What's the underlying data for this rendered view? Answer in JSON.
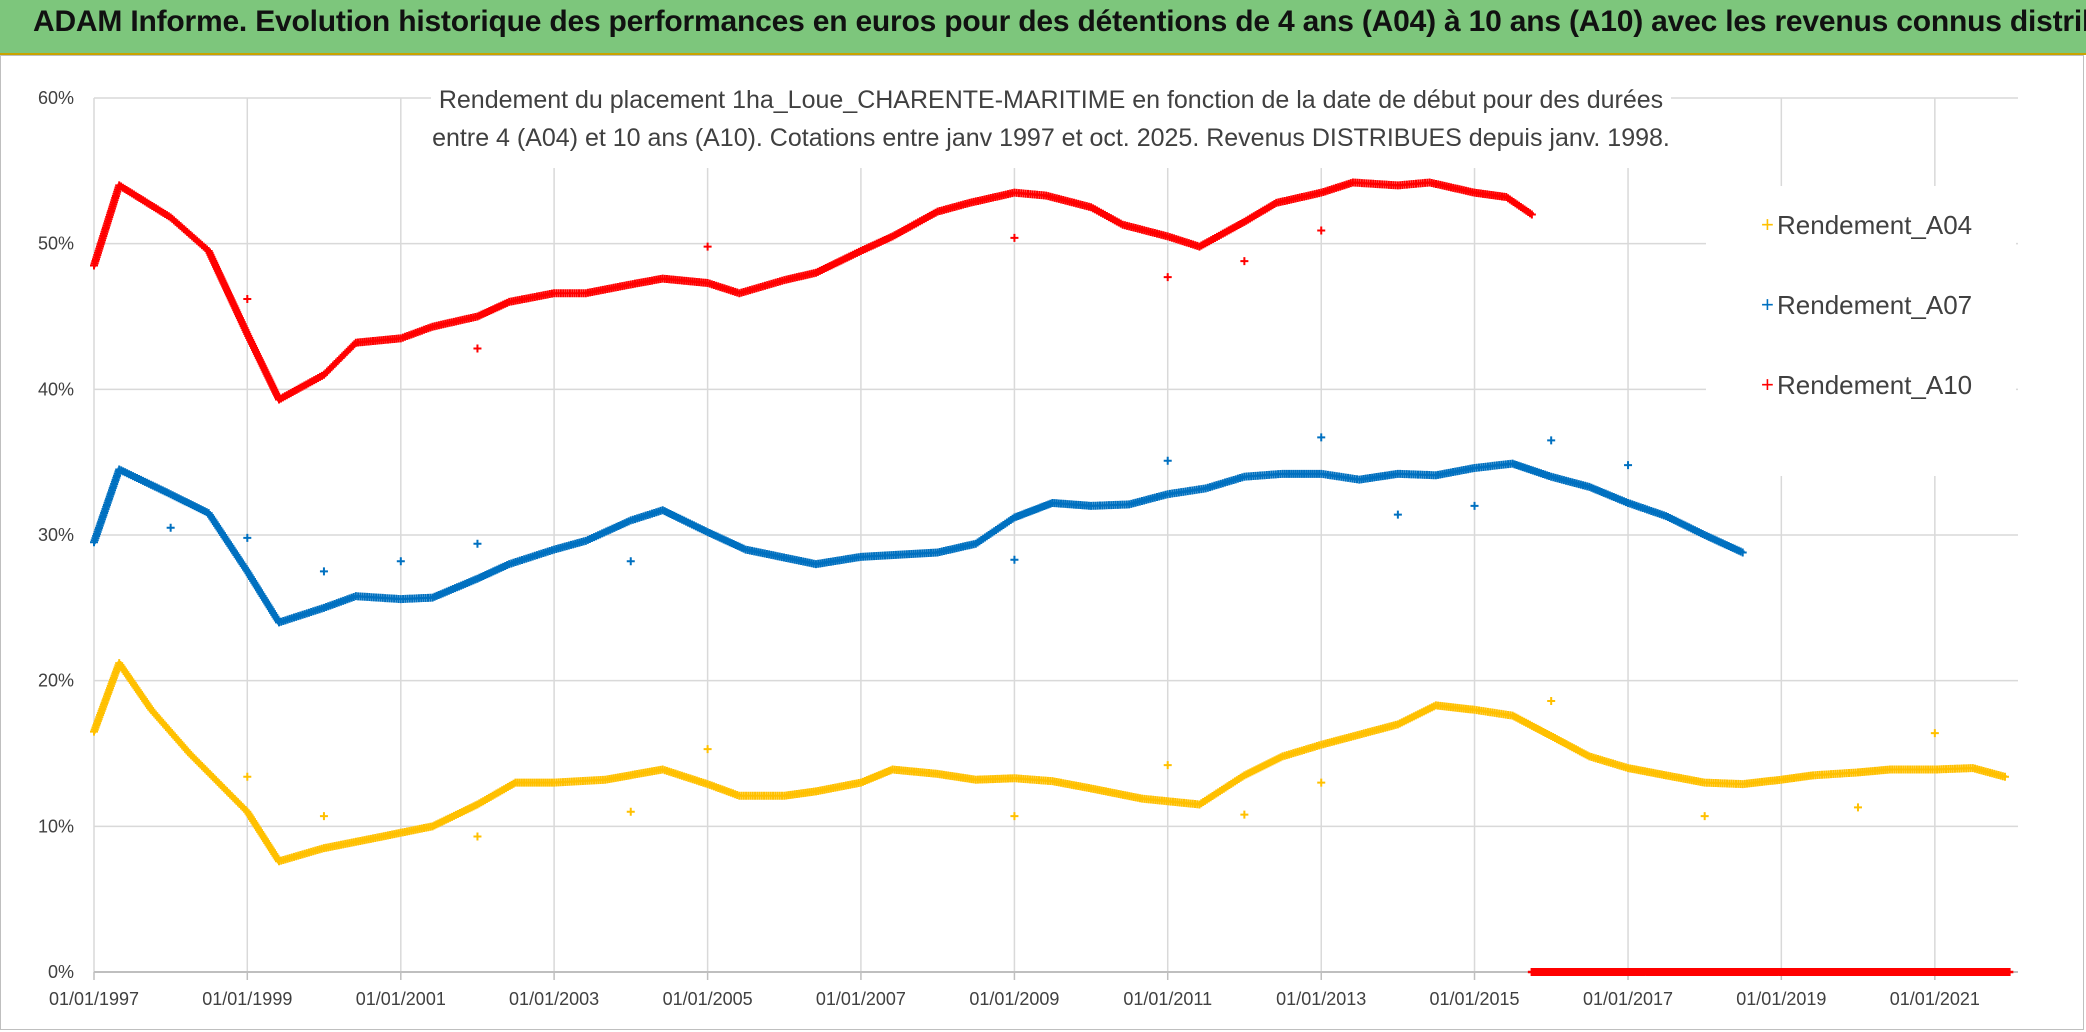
{
  "banner": {
    "title": "ADAM Informe. Evolution historique des performances en euros pour des détentions de 4 ans (A04) à 10 ans (A10) avec les revenus connus distribués"
  },
  "chart_data": {
    "type": "scatter",
    "title_lines": [
      "Rendement du placement 1ha_Loue_CHARENTE-MARITIME en fonction de la date de début pour des durées",
      "entre 4 (A04) et 10 ans (A10). Cotations entre janv 1997 et oct. 2025. Revenus DISTRIBUES depuis janv. 1998."
    ],
    "xlabel": "",
    "ylabel": "",
    "x_type": "date",
    "xlim": [
      "1997-01-01",
      "2022-02-01"
    ],
    "ylim": [
      0,
      60
    ],
    "y_ticks": [
      0,
      10,
      20,
      30,
      40,
      50,
      60
    ],
    "y_tick_labels": [
      "0%",
      "10%",
      "20%",
      "30%",
      "40%",
      "50%",
      "60%"
    ],
    "x_ticks": [
      "1997-01-01",
      "1999-01-01",
      "2001-01-01",
      "2003-01-01",
      "2005-01-01",
      "2007-01-01",
      "2009-01-01",
      "2011-01-01",
      "2013-01-01",
      "2015-01-01",
      "2017-01-01",
      "2019-01-01",
      "2021-01-01"
    ],
    "x_tick_labels": [
      "01/01/1997",
      "01/01/1999",
      "01/01/2001",
      "01/01/2003",
      "01/01/2005",
      "01/01/2007",
      "01/01/2009",
      "01/01/2011",
      "01/01/2013",
      "01/01/2015",
      "01/01/2017",
      "01/01/2019",
      "01/01/2021"
    ],
    "grid": true,
    "legend_position": "right",
    "series": [
      {
        "name": "Rendement_A04",
        "color": "#ffc000",
        "marker": "+",
        "values": [
          [
            "1997-01-01",
            16.5
          ],
          [
            "1997-05-01",
            21.2
          ],
          [
            "1997-10-01",
            18.0
          ],
          [
            "1998-04-01",
            15.0
          ],
          [
            "1999-01-01",
            11.0
          ],
          [
            "1999-06-01",
            7.6
          ],
          [
            "2000-01-01",
            8.5
          ],
          [
            "2000-09-01",
            9.2
          ],
          [
            "2001-06-01",
            10.0
          ],
          [
            "2002-01-01",
            11.5
          ],
          [
            "2002-07-01",
            13.0
          ],
          [
            "2003-01-01",
            13.0
          ],
          [
            "2003-09-01",
            13.2
          ],
          [
            "2004-06-01",
            13.9
          ],
          [
            "2005-01-01",
            12.9
          ],
          [
            "2005-06-01",
            12.1
          ],
          [
            "2006-01-01",
            12.1
          ],
          [
            "2006-06-01",
            12.4
          ],
          [
            "2007-01-01",
            13.0
          ],
          [
            "2007-06-01",
            13.9
          ],
          [
            "2008-01-01",
            13.6
          ],
          [
            "2008-07-01",
            13.2
          ],
          [
            "2009-01-01",
            13.3
          ],
          [
            "2009-07-01",
            13.1
          ],
          [
            "2010-01-01",
            12.6
          ],
          [
            "2010-09-01",
            11.9
          ],
          [
            "2011-06-01",
            11.5
          ],
          [
            "2012-01-01",
            13.5
          ],
          [
            "2012-07-01",
            14.8
          ],
          [
            "2013-01-01",
            15.6
          ],
          [
            "2014-01-01",
            17.0
          ],
          [
            "2014-07-01",
            18.3
          ],
          [
            "2015-01-01",
            18.0
          ],
          [
            "2015-07-01",
            17.6
          ],
          [
            "2016-01-01",
            16.2
          ],
          [
            "2016-07-01",
            14.8
          ],
          [
            "2017-01-01",
            14.0
          ],
          [
            "2017-07-01",
            13.5
          ],
          [
            "2018-01-01",
            13.0
          ],
          [
            "2018-07-01",
            12.9
          ],
          [
            "2019-01-01",
            13.2
          ],
          [
            "2019-06-01",
            13.5
          ],
          [
            "2020-01-01",
            13.7
          ],
          [
            "2020-06-01",
            13.9
          ],
          [
            "2021-01-01",
            13.9
          ],
          [
            "2021-07-01",
            14.0
          ],
          [
            "2021-12-01",
            13.4
          ]
        ],
        "outliers": [
          [
            "1999-01-01",
            13.4
          ],
          [
            "2000-01-01",
            10.7
          ],
          [
            "2002-01-01",
            9.3
          ],
          [
            "2004-01-01",
            11.0
          ],
          [
            "2005-01-01",
            15.3
          ],
          [
            "2009-01-01",
            10.7
          ],
          [
            "2011-01-01",
            14.2
          ],
          [
            "2012-01-01",
            10.8
          ],
          [
            "2013-01-01",
            13.0
          ],
          [
            "2016-01-01",
            18.6
          ],
          [
            "2018-01-01",
            10.7
          ],
          [
            "2020-01-01",
            11.3
          ],
          [
            "2021-01-01",
            16.4
          ]
        ]
      },
      {
        "name": "Rendement_A07",
        "color": "#0070c0",
        "marker": "+",
        "values": [
          [
            "1997-01-01",
            29.5
          ],
          [
            "1997-05-01",
            34.5
          ],
          [
            "1998-01-01",
            32.8
          ],
          [
            "1998-07-01",
            31.5
          ],
          [
            "1999-01-01",
            27.5
          ],
          [
            "1999-06-01",
            24.0
          ],
          [
            "2000-01-01",
            25.0
          ],
          [
            "2000-06-01",
            25.8
          ],
          [
            "2001-01-01",
            25.6
          ],
          [
            "2001-06-01",
            25.7
          ],
          [
            "2002-01-01",
            27.0
          ],
          [
            "2002-06-01",
            28.0
          ],
          [
            "2003-01-01",
            29.0
          ],
          [
            "2003-06-01",
            29.6
          ],
          [
            "2004-01-01",
            31.0
          ],
          [
            "2004-06-01",
            31.7
          ],
          [
            "2005-01-01",
            30.2
          ],
          [
            "2005-07-01",
            29.0
          ],
          [
            "2006-06-01",
            28.0
          ],
          [
            "2007-01-01",
            28.5
          ],
          [
            "2008-01-01",
            28.8
          ],
          [
            "2008-07-01",
            29.4
          ],
          [
            "2009-01-01",
            31.2
          ],
          [
            "2009-07-01",
            32.2
          ],
          [
            "2010-01-01",
            32.0
          ],
          [
            "2010-07-01",
            32.1
          ],
          [
            "2011-01-01",
            32.8
          ],
          [
            "2011-07-01",
            33.2
          ],
          [
            "2012-01-01",
            34.0
          ],
          [
            "2012-07-01",
            34.2
          ],
          [
            "2013-01-01",
            34.2
          ],
          [
            "2013-07-01",
            33.8
          ],
          [
            "2014-01-01",
            34.2
          ],
          [
            "2014-07-01",
            34.1
          ],
          [
            "2015-01-01",
            34.6
          ],
          [
            "2015-07-01",
            34.9
          ],
          [
            "2016-01-01",
            34.0
          ],
          [
            "2016-07-01",
            33.3
          ],
          [
            "2017-01-01",
            32.2
          ],
          [
            "2017-07-01",
            31.3
          ],
          [
            "2018-01-01",
            30.0
          ],
          [
            "2018-07-01",
            28.8
          ]
        ],
        "outliers": [
          [
            "1998-01-01",
            30.5
          ],
          [
            "1999-01-01",
            29.8
          ],
          [
            "2000-01-01",
            27.5
          ],
          [
            "2001-01-01",
            28.2
          ],
          [
            "2002-01-01",
            29.4
          ],
          [
            "2004-01-01",
            28.2
          ],
          [
            "2009-01-01",
            28.3
          ],
          [
            "2011-01-01",
            35.1
          ],
          [
            "2013-01-01",
            36.7
          ],
          [
            "2014-01-01",
            31.4
          ],
          [
            "2015-01-01",
            32.0
          ],
          [
            "2016-01-01",
            36.5
          ],
          [
            "2017-01-01",
            34.8
          ]
        ]
      },
      {
        "name": "Rendement_A10",
        "color": "#ff0000",
        "marker": "+",
        "values": [
          [
            "1997-01-01",
            48.5
          ],
          [
            "1997-05-01",
            54.0
          ],
          [
            "1998-01-01",
            51.8
          ],
          [
            "1998-07-01",
            49.5
          ],
          [
            "1999-01-01",
            43.8
          ],
          [
            "1999-06-01",
            39.3
          ],
          [
            "2000-01-01",
            41.0
          ],
          [
            "2000-06-01",
            43.2
          ],
          [
            "2001-01-01",
            43.5
          ],
          [
            "2001-06-01",
            44.3
          ],
          [
            "2002-01-01",
            45.0
          ],
          [
            "2002-06-01",
            46.0
          ],
          [
            "2003-01-01",
            46.6
          ],
          [
            "2003-06-01",
            46.6
          ],
          [
            "2004-01-01",
            47.2
          ],
          [
            "2004-06-01",
            47.6
          ],
          [
            "2005-01-01",
            47.3
          ],
          [
            "2005-06-01",
            46.6
          ],
          [
            "2006-01-01",
            47.5
          ],
          [
            "2006-06-01",
            48.0
          ],
          [
            "2007-01-01",
            49.5
          ],
          [
            "2007-06-01",
            50.5
          ],
          [
            "2008-01-01",
            52.2
          ],
          [
            "2008-06-01",
            52.8
          ],
          [
            "2009-01-01",
            53.5
          ],
          [
            "2009-06-01",
            53.3
          ],
          [
            "2010-01-01",
            52.5
          ],
          [
            "2010-06-01",
            51.3
          ],
          [
            "2011-01-01",
            50.5
          ],
          [
            "2011-06-01",
            49.8
          ],
          [
            "2012-01-01",
            51.5
          ],
          [
            "2012-06-01",
            52.8
          ],
          [
            "2013-01-01",
            53.5
          ],
          [
            "2013-06-01",
            54.2
          ],
          [
            "2014-01-01",
            54.0
          ],
          [
            "2014-06-01",
            54.2
          ],
          [
            "2015-01-01",
            53.5
          ],
          [
            "2015-06-01",
            53.2
          ],
          [
            "2015-10-01",
            52.0
          ]
        ],
        "outliers": [
          [
            "1999-01-01",
            46.2
          ],
          [
            "2002-01-01",
            42.8
          ],
          [
            "2005-01-01",
            49.8
          ],
          [
            "2009-01-01",
            50.4
          ],
          [
            "2011-01-01",
            47.7
          ],
          [
            "2012-01-01",
            48.8
          ],
          [
            "2013-01-01",
            50.9
          ]
        ],
        "zero_segment": [
          "2015-10-01",
          "2022-01-01"
        ]
      }
    ]
  }
}
